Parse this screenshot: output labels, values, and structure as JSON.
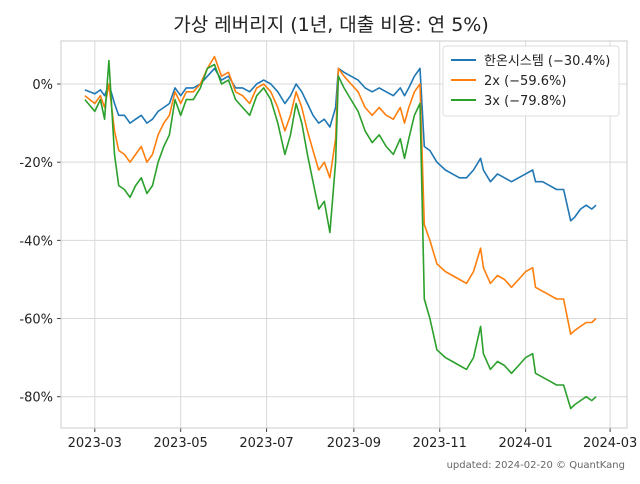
{
  "chart_data": {
    "type": "line",
    "title": "가상 레버리지 (1년, 대출 비용: 연 5%)",
    "xlabel": "",
    "ylabel": "",
    "x_ticks": [
      "2023-03",
      "2023-05",
      "2023-07",
      "2023-09",
      "2023-11",
      "2024-01",
      "2024-03"
    ],
    "x_range": [
      "2023-02-05",
      "2024-03-13"
    ],
    "ylim": [
      -88,
      11
    ],
    "y_ticks": [
      0,
      -20,
      -40,
      -60,
      -80
    ],
    "y_tick_format": "percent",
    "grid": true,
    "legend_position": "top-right",
    "series": [
      {
        "name": "한온시스템 (−30.4%)",
        "color": "#1f77b4",
        "points": [
          [
            "2023-02-22",
            -1.5
          ],
          [
            "2023-03-01",
            -2.5
          ],
          [
            "2023-03-05",
            -1.5
          ],
          [
            "2023-03-08",
            -3
          ],
          [
            "2023-03-11",
            0
          ],
          [
            "2023-03-15",
            -5
          ],
          [
            "2023-03-18",
            -8
          ],
          [
            "2023-03-22",
            -8
          ],
          [
            "2023-03-26",
            -10
          ],
          [
            "2023-03-30",
            -9
          ],
          [
            "2023-04-03",
            -8
          ],
          [
            "2023-04-07",
            -10
          ],
          [
            "2023-04-11",
            -9
          ],
          [
            "2023-04-15",
            -7
          ],
          [
            "2023-04-19",
            -6
          ],
          [
            "2023-04-23",
            -5
          ],
          [
            "2023-04-27",
            -1
          ],
          [
            "2023-05-01",
            -3
          ],
          [
            "2023-05-05",
            -1
          ],
          [
            "2023-05-10",
            -1
          ],
          [
            "2023-05-15",
            0
          ],
          [
            "2023-05-20",
            2
          ],
          [
            "2023-05-25",
            4
          ],
          [
            "2023-05-30",
            1
          ],
          [
            "2023-06-04",
            2
          ],
          [
            "2023-06-09",
            -1
          ],
          [
            "2023-06-14",
            -1
          ],
          [
            "2023-06-19",
            -2
          ],
          [
            "2023-06-24",
            0
          ],
          [
            "2023-06-29",
            1
          ],
          [
            "2023-07-04",
            0
          ],
          [
            "2023-07-09",
            -2
          ],
          [
            "2023-07-14",
            -5
          ],
          [
            "2023-07-18",
            -3
          ],
          [
            "2023-07-22",
            0
          ],
          [
            "2023-07-26",
            -2
          ],
          [
            "2023-07-30",
            -5
          ],
          [
            "2023-08-03",
            -8
          ],
          [
            "2023-08-07",
            -10
          ],
          [
            "2023-08-11",
            -9
          ],
          [
            "2023-08-15",
            -11
          ],
          [
            "2023-08-19",
            -6
          ],
          [
            "2023-08-21",
            4
          ],
          [
            "2023-08-25",
            3
          ],
          [
            "2023-08-30",
            2
          ],
          [
            "2023-09-04",
            1
          ],
          [
            "2023-09-09",
            -1
          ],
          [
            "2023-09-14",
            -2
          ],
          [
            "2023-09-19",
            -1
          ],
          [
            "2023-09-24",
            -2
          ],
          [
            "2023-09-29",
            -3
          ],
          [
            "2023-10-04",
            -1
          ],
          [
            "2023-10-07",
            -3
          ],
          [
            "2023-10-10",
            -1
          ],
          [
            "2023-10-14",
            2
          ],
          [
            "2023-10-18",
            4
          ],
          [
            "2023-10-21",
            -16
          ],
          [
            "2023-10-25",
            -17
          ],
          [
            "2023-10-30",
            -20
          ],
          [
            "2023-11-05",
            -22
          ],
          [
            "2023-11-10",
            -23
          ],
          [
            "2023-11-15",
            -24
          ],
          [
            "2023-11-20",
            -24
          ],
          [
            "2023-11-25",
            -22
          ],
          [
            "2023-11-30",
            -19
          ],
          [
            "2023-12-02",
            -22
          ],
          [
            "2023-12-07",
            -25
          ],
          [
            "2023-12-12",
            -23
          ],
          [
            "2023-12-17",
            -24
          ],
          [
            "2023-12-22",
            -25
          ],
          [
            "2023-12-27",
            -24
          ],
          [
            "2024-01-01",
            -23
          ],
          [
            "2024-01-06",
            -22
          ],
          [
            "2024-01-08",
            -25
          ],
          [
            "2024-01-13",
            -25
          ],
          [
            "2024-01-18",
            -26
          ],
          [
            "2024-01-23",
            -27
          ],
          [
            "2024-01-28",
            -27
          ],
          [
            "2024-02-02",
            -35
          ],
          [
            "2024-02-05",
            -34
          ],
          [
            "2024-02-09",
            -32
          ],
          [
            "2024-02-13",
            -31
          ],
          [
            "2024-02-17",
            -32
          ],
          [
            "2024-02-20",
            -31
          ]
        ]
      },
      {
        "name": "2x (−59.6%)",
        "color": "#ff7f0e",
        "points": [
          [
            "2023-02-22",
            -3
          ],
          [
            "2023-03-01",
            -5
          ],
          [
            "2023-03-05",
            -3
          ],
          [
            "2023-03-08",
            -6
          ],
          [
            "2023-03-11",
            0
          ],
          [
            "2023-03-15",
            -12
          ],
          [
            "2023-03-18",
            -17
          ],
          [
            "2023-03-22",
            -18
          ],
          [
            "2023-03-26",
            -20
          ],
          [
            "2023-03-30",
            -18
          ],
          [
            "2023-04-03",
            -16
          ],
          [
            "2023-04-07",
            -20
          ],
          [
            "2023-04-11",
            -18
          ],
          [
            "2023-04-15",
            -13
          ],
          [
            "2023-04-19",
            -10
          ],
          [
            "2023-04-23",
            -8
          ],
          [
            "2023-04-27",
            -2
          ],
          [
            "2023-05-01",
            -5
          ],
          [
            "2023-05-05",
            -2
          ],
          [
            "2023-05-10",
            -2
          ],
          [
            "2023-05-15",
            0
          ],
          [
            "2023-05-20",
            4
          ],
          [
            "2023-05-25",
            7
          ],
          [
            "2023-05-30",
            2
          ],
          [
            "2023-06-04",
            3
          ],
          [
            "2023-06-09",
            -2
          ],
          [
            "2023-06-14",
            -3
          ],
          [
            "2023-06-19",
            -5
          ],
          [
            "2023-06-24",
            -1
          ],
          [
            "2023-06-29",
            0
          ],
          [
            "2023-07-04",
            -2
          ],
          [
            "2023-07-09",
            -6
          ],
          [
            "2023-07-14",
            -12
          ],
          [
            "2023-07-18",
            -8
          ],
          [
            "2023-07-22",
            -2
          ],
          [
            "2023-07-26",
            -6
          ],
          [
            "2023-07-30",
            -12
          ],
          [
            "2023-08-03",
            -17
          ],
          [
            "2023-08-07",
            -22
          ],
          [
            "2023-08-11",
            -20
          ],
          [
            "2023-08-15",
            -24
          ],
          [
            "2023-08-19",
            -14
          ],
          [
            "2023-08-21",
            4
          ],
          [
            "2023-08-25",
            2
          ],
          [
            "2023-08-30",
            0
          ],
          [
            "2023-09-04",
            -2
          ],
          [
            "2023-09-09",
            -6
          ],
          [
            "2023-09-14",
            -8
          ],
          [
            "2023-09-19",
            -6
          ],
          [
            "2023-09-24",
            -8
          ],
          [
            "2023-09-29",
            -9
          ],
          [
            "2023-10-04",
            -6
          ],
          [
            "2023-10-07",
            -10
          ],
          [
            "2023-10-10",
            -6
          ],
          [
            "2023-10-14",
            -2
          ],
          [
            "2023-10-18",
            0
          ],
          [
            "2023-10-21",
            -36
          ],
          [
            "2023-10-25",
            -40
          ],
          [
            "2023-10-30",
            -46
          ],
          [
            "2023-11-05",
            -48
          ],
          [
            "2023-11-10",
            -49
          ],
          [
            "2023-11-15",
            -50
          ],
          [
            "2023-11-20",
            -51
          ],
          [
            "2023-11-25",
            -48
          ],
          [
            "2023-11-30",
            -42
          ],
          [
            "2023-12-02",
            -47
          ],
          [
            "2023-12-07",
            -51
          ],
          [
            "2023-12-12",
            -49
          ],
          [
            "2023-12-17",
            -50
          ],
          [
            "2023-12-22",
            -52
          ],
          [
            "2023-12-27",
            -50
          ],
          [
            "2024-01-01",
            -48
          ],
          [
            "2024-01-06",
            -47
          ],
          [
            "2024-01-08",
            -52
          ],
          [
            "2024-01-13",
            -53
          ],
          [
            "2024-01-18",
            -54
          ],
          [
            "2024-01-23",
            -55
          ],
          [
            "2024-01-28",
            -55
          ],
          [
            "2024-02-02",
            -64
          ],
          [
            "2024-02-05",
            -63
          ],
          [
            "2024-02-09",
            -62
          ],
          [
            "2024-02-13",
            -61
          ],
          [
            "2024-02-17",
            -61
          ],
          [
            "2024-02-20",
            -60
          ]
        ]
      },
      {
        "name": "3x (−79.8%)",
        "color": "#2ca02c",
        "points": [
          [
            "2023-02-22",
            -4
          ],
          [
            "2023-03-01",
            -7
          ],
          [
            "2023-03-05",
            -4
          ],
          [
            "2023-03-08",
            -9
          ],
          [
            "2023-03-11",
            6
          ],
          [
            "2023-03-15",
            -18
          ],
          [
            "2023-03-18",
            -26
          ],
          [
            "2023-03-22",
            -27
          ],
          [
            "2023-03-26",
            -29
          ],
          [
            "2023-03-30",
            -26
          ],
          [
            "2023-04-03",
            -24
          ],
          [
            "2023-04-07",
            -28
          ],
          [
            "2023-04-11",
            -26
          ],
          [
            "2023-04-15",
            -20
          ],
          [
            "2023-04-19",
            -16
          ],
          [
            "2023-04-23",
            -13
          ],
          [
            "2023-04-27",
            -4
          ],
          [
            "2023-05-01",
            -8
          ],
          [
            "2023-05-05",
            -4
          ],
          [
            "2023-05-10",
            -4
          ],
          [
            "2023-05-15",
            -1
          ],
          [
            "2023-05-20",
            4
          ],
          [
            "2023-05-25",
            5
          ],
          [
            "2023-05-30",
            0
          ],
          [
            "2023-06-04",
            1
          ],
          [
            "2023-06-09",
            -4
          ],
          [
            "2023-06-14",
            -6
          ],
          [
            "2023-06-19",
            -8
          ],
          [
            "2023-06-24",
            -3
          ],
          [
            "2023-06-29",
            -1
          ],
          [
            "2023-07-04",
            -4
          ],
          [
            "2023-07-09",
            -10
          ],
          [
            "2023-07-14",
            -18
          ],
          [
            "2023-07-18",
            -13
          ],
          [
            "2023-07-22",
            -5
          ],
          [
            "2023-07-26",
            -10
          ],
          [
            "2023-07-30",
            -18
          ],
          [
            "2023-08-03",
            -25
          ],
          [
            "2023-08-07",
            -32
          ],
          [
            "2023-08-11",
            -30
          ],
          [
            "2023-08-15",
            -38
          ],
          [
            "2023-08-19",
            -20
          ],
          [
            "2023-08-21",
            2
          ],
          [
            "2023-08-25",
            -1
          ],
          [
            "2023-08-30",
            -4
          ],
          [
            "2023-09-04",
            -7
          ],
          [
            "2023-09-09",
            -12
          ],
          [
            "2023-09-14",
            -15
          ],
          [
            "2023-09-19",
            -13
          ],
          [
            "2023-09-24",
            -16
          ],
          [
            "2023-09-29",
            -18
          ],
          [
            "2023-10-04",
            -14
          ],
          [
            "2023-10-07",
            -19
          ],
          [
            "2023-10-10",
            -14
          ],
          [
            "2023-10-14",
            -8
          ],
          [
            "2023-10-18",
            -5
          ],
          [
            "2023-10-21",
            -55
          ],
          [
            "2023-10-25",
            -60
          ],
          [
            "2023-10-30",
            -68
          ],
          [
            "2023-11-05",
            -70
          ],
          [
            "2023-11-10",
            -71
          ],
          [
            "2023-11-15",
            -72
          ],
          [
            "2023-11-20",
            -73
          ],
          [
            "2023-11-25",
            -70
          ],
          [
            "2023-11-30",
            -62
          ],
          [
            "2023-12-02",
            -69
          ],
          [
            "2023-12-07",
            -73
          ],
          [
            "2023-12-12",
            -71
          ],
          [
            "2023-12-17",
            -72
          ],
          [
            "2023-12-22",
            -74
          ],
          [
            "2023-12-27",
            -72
          ],
          [
            "2024-01-01",
            -70
          ],
          [
            "2024-01-06",
            -69
          ],
          [
            "2024-01-08",
            -74
          ],
          [
            "2024-01-13",
            -75
          ],
          [
            "2024-01-18",
            -76
          ],
          [
            "2024-01-23",
            -77
          ],
          [
            "2024-01-28",
            -77
          ],
          [
            "2024-02-02",
            -83
          ],
          [
            "2024-02-05",
            -82
          ],
          [
            "2024-02-09",
            -81
          ],
          [
            "2024-02-13",
            -80
          ],
          [
            "2024-02-17",
            -81
          ],
          [
            "2024-02-20",
            -80
          ]
        ]
      }
    ],
    "footnote": "updated: 2024-02-20 © QuantKang"
  }
}
